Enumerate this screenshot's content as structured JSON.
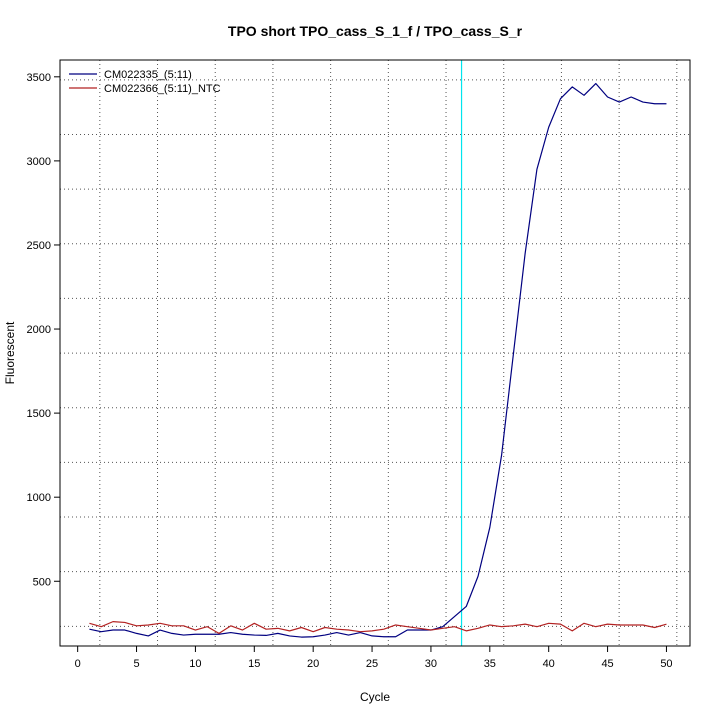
{
  "chart_data": {
    "type": "line",
    "title": "TPO short TPO_cass_S_1_f / TPO_cass_S_r",
    "xlabel": "Cycle",
    "ylabel": "Fluorescent",
    "xlim": [
      -1.5,
      52.0
    ],
    "ylim": [
      115,
      3600
    ],
    "x_ticks": [
      0,
      5,
      10,
      15,
      20,
      25,
      30,
      35,
      40,
      45,
      50
    ],
    "y_ticks": [
      500,
      1000,
      1500,
      2000,
      2500,
      3000,
      3500
    ],
    "grid": true,
    "legend_position": "top-left",
    "threshold_cycle": 32.6,
    "threshold_color": "#00e5ee",
    "x": [
      1,
      2,
      3,
      4,
      5,
      6,
      7,
      8,
      9,
      10,
      11,
      12,
      13,
      14,
      15,
      16,
      17,
      18,
      19,
      20,
      21,
      22,
      23,
      24,
      25,
      26,
      27,
      28,
      29,
      30,
      31,
      32,
      33,
      34,
      35,
      36,
      37,
      38,
      39,
      40,
      41,
      42,
      43,
      44,
      45,
      46,
      47,
      48,
      49,
      50
    ],
    "series": [
      {
        "name": "CM022335_(5:11)",
        "color": "#000080",
        "values": [
          215,
          200,
          210,
          210,
          190,
          175,
          210,
          190,
          180,
          185,
          185,
          185,
          195,
          185,
          180,
          178,
          190,
          175,
          168,
          170,
          180,
          195,
          180,
          195,
          175,
          170,
          170,
          210,
          210,
          210,
          230,
          290,
          350,
          530,
          820,
          1250,
          1850,
          2450,
          2950,
          3200,
          3370,
          3440,
          3390,
          3460,
          3380,
          3350,
          3380,
          3350,
          3340,
          3340
        ]
      },
      {
        "name": "CM022366_(5:11)_NTC",
        "color": "#b22222",
        "values": [
          250,
          230,
          260,
          255,
          235,
          240,
          250,
          235,
          235,
          210,
          230,
          190,
          235,
          210,
          250,
          215,
          220,
          205,
          225,
          200,
          225,
          215,
          210,
          200,
          205,
          215,
          240,
          230,
          220,
          210,
          220,
          230,
          205,
          220,
          240,
          230,
          235,
          245,
          230,
          250,
          245,
          205,
          250,
          230,
          245,
          240,
          240,
          240,
          225,
          245
        ]
      }
    ]
  }
}
